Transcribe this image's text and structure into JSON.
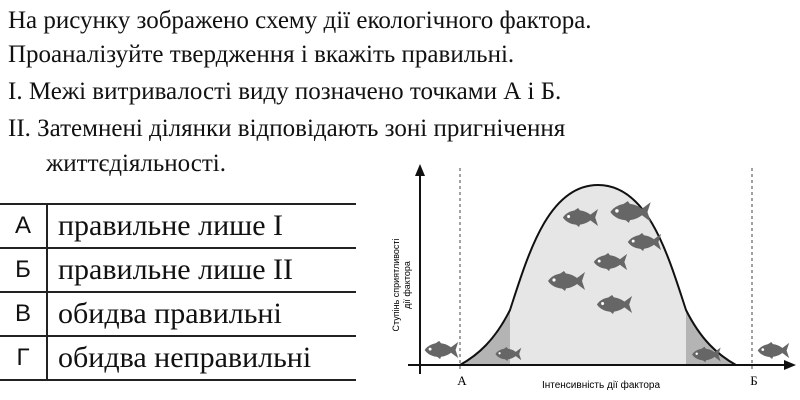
{
  "question": {
    "lines": [
      "На рисунку зображено схему дії екологічного фактора.",
      "Проаналізуйте твердження і вкажіть правильні.",
      "І. Межі витривалості виду позначено точками А і Б.",
      "ІІ. Затемнені ділянки відповідають зоні пригнічення",
      "життєдіяльності."
    ]
  },
  "answers": [
    {
      "letter": "А",
      "text": "правильне лише І"
    },
    {
      "letter": "Б",
      "text": "правильне лише ІІ"
    },
    {
      "letter": "В",
      "text": "обидва правильні"
    },
    {
      "letter": "Г",
      "text": "обидва неправильні"
    }
  ],
  "diagram": {
    "y_axis_label_line1": "Ступінь сприятливості",
    "y_axis_label_line2": "дії фактора",
    "x_axis_label": "Інтенсивність дії фактора",
    "point_a": "А",
    "point_b": "Б",
    "colors": {
      "inner_zone": "#e6e6e6",
      "stress_zone": "#b4b4b4",
      "fish": "#666666",
      "axis": "#111111"
    },
    "icons": [
      "fish-icon"
    ]
  }
}
